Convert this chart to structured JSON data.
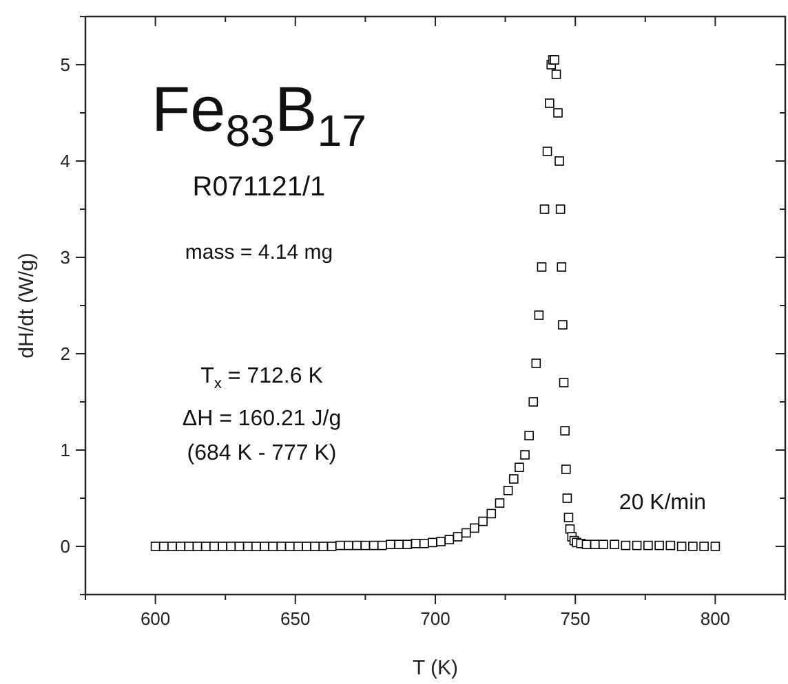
{
  "chart_data": {
    "type": "scatter",
    "xlabel": "T (K)",
    "ylabel": "dH/dt (W/g)",
    "marker": "square",
    "xlim": [
      575,
      825
    ],
    "xticks": [
      {
        "value": 575,
        "label": null
      },
      600,
      {
        "value": 625,
        "label": null
      },
      650,
      {
        "value": 675,
        "label": null
      },
      700,
      {
        "value": 725,
        "label": null
      },
      750,
      {
        "value": 775,
        "label": null
      },
      800,
      {
        "value": 825,
        "label": null
      }
    ],
    "ylim": [
      -0.5,
      5.5
    ],
    "yticks": [
      {
        "value": -0.5,
        "label": null
      },
      0,
      {
        "value": 0.5,
        "label": null
      },
      1,
      {
        "value": 1.5,
        "label": null
      },
      2,
      {
        "value": 2.5,
        "label": null
      },
      3,
      {
        "value": 3.5,
        "label": null
      },
      4,
      {
        "value": 4.5,
        "label": null
      },
      5,
      {
        "value": 5.5,
        "label": null
      }
    ],
    "annotations": [
      "Fe$_{83}$B$_{17}$",
      "R071121/1",
      "mass = 4.14 mg",
      "T$_{x}$ = 712.6 K",
      "ΔH = 160.21 J/g",
      "(684 K - 777 K)",
      "20 K/min"
    ],
    "series": [
      {
        "color": "#000000",
        "x": [
          600,
          603,
          606,
          609,
          612,
          615,
          618,
          621,
          624,
          627,
          630,
          633,
          636,
          639,
          642,
          645,
          648,
          651,
          654,
          657,
          660,
          663,
          666,
          669,
          672,
          675,
          678,
          681,
          684,
          687,
          690,
          693,
          696,
          699,
          702,
          705,
          708,
          711,
          714,
          717,
          720,
          723,
          726,
          728,
          730,
          732,
          733.5,
          735,
          736,
          737,
          738,
          739,
          740,
          740.8,
          741.4,
          742,
          742.6,
          743.2,
          743.8,
          744.3,
          744.7,
          745.1,
          745.5,
          745.9,
          746.3,
          746.7,
          747.1,
          747.6,
          748.1,
          748.8,
          749.6,
          750.5,
          752,
          754,
          757,
          760,
          764,
          768,
          772,
          776,
          780,
          784,
          788,
          792,
          796,
          800
        ],
        "values": [
          0,
          0,
          0,
          0,
          0,
          0,
          0,
          0,
          0,
          0,
          0,
          0,
          0,
          0,
          0,
          0,
          0,
          0,
          0,
          0,
          0,
          0,
          0.01,
          0.01,
          0.01,
          0.01,
          0.01,
          0.01,
          0.02,
          0.02,
          0.02,
          0.03,
          0.03,
          0.04,
          0.05,
          0.07,
          0.1,
          0.14,
          0.19,
          0.26,
          0.34,
          0.45,
          0.58,
          0.7,
          0.82,
          0.95,
          1.15,
          1.5,
          1.9,
          2.4,
          2.9,
          3.5,
          4.1,
          4.6,
          5.0,
          5.05,
          5.05,
          4.9,
          4.5,
          4.0,
          3.5,
          2.9,
          2.3,
          1.7,
          1.2,
          0.8,
          0.5,
          0.3,
          0.18,
          0.1,
          0.06,
          0.04,
          0.03,
          0.02,
          0.02,
          0.02,
          0.02,
          0.01,
          0.01,
          0.01,
          0.01,
          0.01,
          0,
          0,
          0,
          0
        ]
      }
    ]
  }
}
